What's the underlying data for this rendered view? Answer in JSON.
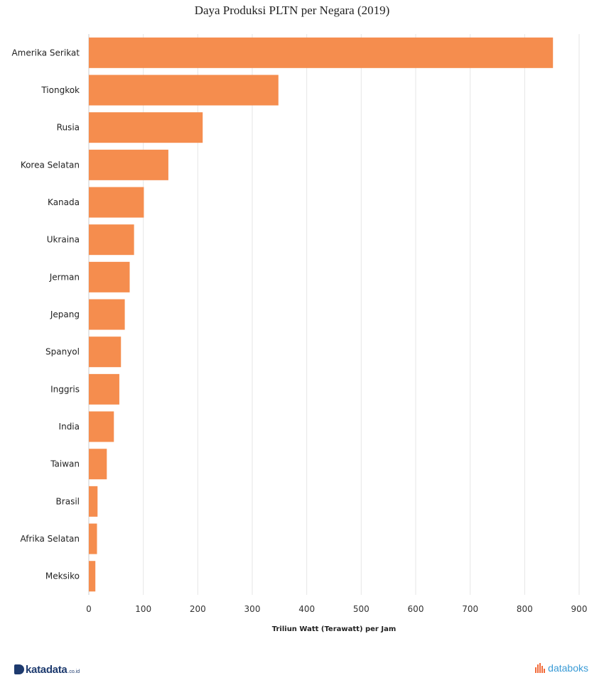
{
  "chart_data": {
    "type": "bar",
    "orientation": "horizontal",
    "title": "Daya Produksi PLTN per Negara (2019)",
    "xlabel": "Triliun Watt (Terawatt) per Jam",
    "ylabel": "",
    "categories": [
      "Amerika Serikat",
      "Tiongkok",
      "Rusia",
      "Korea Selatan",
      "Kanada",
      "Ukraina",
      "Jerman",
      "Jepang",
      "Spanyol",
      "Inggris",
      "India",
      "Taiwan",
      "Brasil",
      "Afrika Selatan",
      "Meksiko"
    ],
    "values": [
      852,
      348,
      209,
      146,
      101,
      83,
      75,
      66,
      59,
      56,
      46,
      33,
      16,
      15,
      12
    ],
    "xlim": [
      0,
      900
    ],
    "ticks": [
      "0",
      "100",
      "200",
      "300",
      "400",
      "500",
      "600",
      "700",
      "800",
      "900"
    ],
    "grid": true,
    "bar_color": "#f58d4e"
  },
  "footer": {
    "brand_left": "katadata",
    "brand_left_suffix": ".co.id",
    "brand_right": "databoks",
    "brand_right_icon": "databoks-bars-icon",
    "brand_left_icon": "katadata-d-icon"
  }
}
